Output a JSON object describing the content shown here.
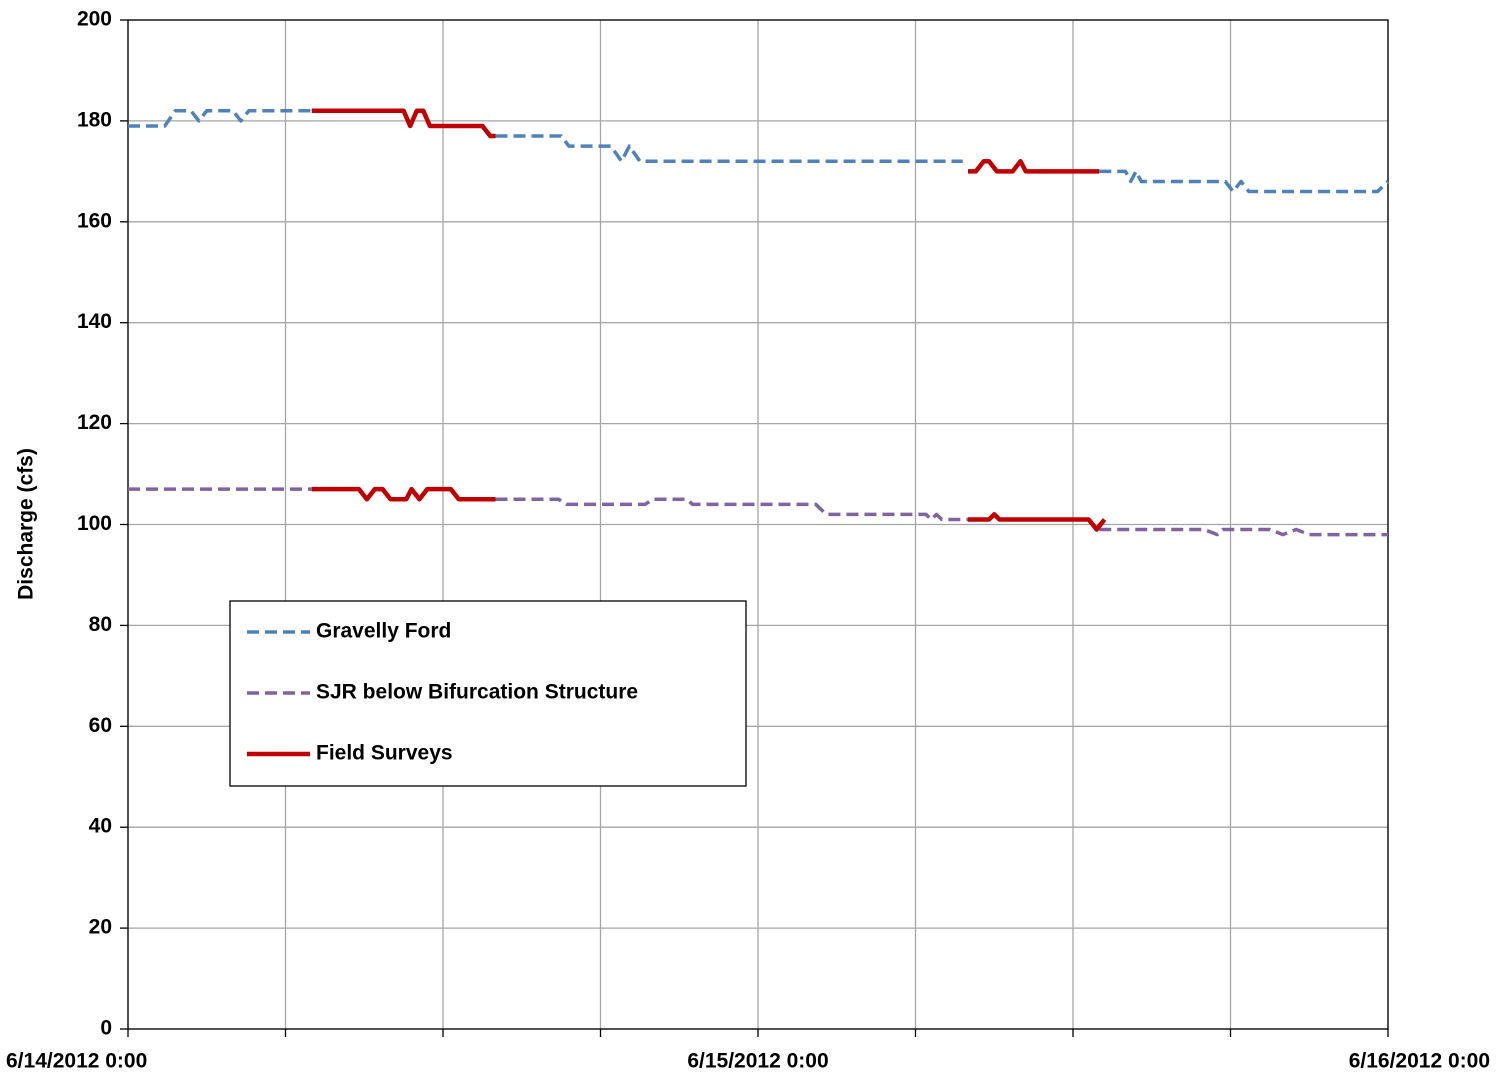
{
  "chart_data": {
    "type": "line",
    "y_label": "Discharge (cfs)",
    "xlim": [
      "6/14/2012 0:00",
      "6/16/2012 0:00"
    ],
    "xticks": [
      "6/14/2012 0:00",
      {
        "value": "6/14/2012 6:00",
        "label": null
      },
      {
        "value": "6/14/2012 12:00",
        "label": null
      },
      {
        "value": "6/14/2012 18:00",
        "label": null
      },
      "6/15/2012 0:00",
      {
        "value": "6/15/2012 6:00",
        "label": null
      },
      {
        "value": "6/15/2012 12:00",
        "label": null
      },
      {
        "value": "6/15/2012 18:00",
        "label": null
      },
      "6/16/2012 0:00"
    ],
    "ylim": [
      0,
      200
    ],
    "yticks": [
      0,
      20,
      40,
      60,
      80,
      100,
      120,
      140,
      160,
      180,
      200
    ],
    "grid": true,
    "legend_position": "inside-left",
    "series": [
      {
        "name": "Gravelly Ford",
        "color": "#4f81bd",
        "dashed": true,
        "x": [
          "6/14/2012 0:00",
          "6/14/2012 1:24",
          "6/14/2012 1:48",
          "6/14/2012 2:24",
          "6/14/2012 2:42",
          "6/14/2012 3:00",
          "6/14/2012 4:00",
          "6/14/2012 4:18",
          "6/14/2012 4:36",
          "6/14/2012 7:00",
          null,
          "6/14/2012 14:00",
          "6/14/2012 16:30",
          "6/14/2012 16:48",
          "6/14/2012 18:24",
          "6/14/2012 18:48",
          "6/14/2012 19:06",
          "6/14/2012 19:30",
          "6/15/2012 7:48",
          null,
          "6/15/2012 13:00",
          "6/15/2012 14:00",
          "6/15/2012 14:12",
          "6/15/2012 14:24",
          "6/15/2012 14:36",
          "6/15/2012 17:48",
          "6/15/2012 18:06",
          "6/15/2012 18:24",
          "6/15/2012 18:42",
          "6/15/2012 23:36",
          "6/16/2012 0:00"
        ],
        "values": [
          179,
          179,
          182,
          182,
          180,
          182,
          182,
          180,
          182,
          182,
          null,
          177,
          177,
          175,
          175,
          172,
          175,
          172,
          172,
          null,
          170,
          170,
          168,
          170,
          168,
          168,
          166,
          168,
          166,
          166,
          168
        ]
      },
      {
        "name": "SJR below Bifurcation Structure",
        "color": "#8064a2",
        "dashed": true,
        "x": [
          "6/14/2012 0:00",
          "6/14/2012 7:00",
          null,
          "6/14/2012 14:00",
          "6/14/2012 16:24",
          "6/14/2012 16:42",
          "6/14/2012 19:42",
          "6/14/2012 20:00",
          "6/14/2012 21:18",
          "6/14/2012 21:30",
          "6/15/2012 2:12",
          "6/15/2012 2:36",
          "6/15/2012 6:24",
          "6/15/2012 6:36",
          "6/15/2012 6:48",
          "6/15/2012 7:00",
          "6/15/2012 8:00",
          null,
          "6/15/2012 13:00",
          "6/15/2012 17:00",
          "6/15/2012 17:30",
          "6/15/2012 17:42",
          "6/15/2012 19:30",
          "6/15/2012 20:00",
          "6/15/2012 20:30",
          "6/15/2012 21:00",
          "6/16/2012 0:00"
        ],
        "values": [
          107,
          107,
          null,
          105,
          105,
          104,
          104,
          105,
          105,
          104,
          104,
          102,
          102,
          101,
          102,
          101,
          101,
          null,
          99,
          99,
          98,
          99,
          99,
          98,
          99,
          98,
          98
        ]
      },
      {
        "name": "Field Surveys",
        "color": "#c00000",
        "dashed": false,
        "x": [
          "6/14/2012 7:00",
          "6/14/2012 10:30",
          "6/14/2012 10:45",
          "6/14/2012 11:00",
          "6/14/2012 11:15",
          "6/14/2012 11:30",
          "6/14/2012 13:30",
          "6/14/2012 13:48",
          "6/14/2012 14:00",
          null,
          "6/15/2012 8:00",
          "6/15/2012 8:18",
          "6/15/2012 8:36",
          "6/15/2012 8:48",
          "6/15/2012 9:06",
          "6/15/2012 9:42",
          "6/15/2012 10:00",
          "6/15/2012 10:12",
          "6/15/2012 13:00",
          null,
          "6/14/2012 7:00",
          "6/14/2012 8:48",
          "6/14/2012 9:06",
          "6/14/2012 9:24",
          "6/14/2012 9:42",
          "6/14/2012 10:00",
          "6/14/2012 10:36",
          "6/14/2012 10:48",
          "6/14/2012 11:06",
          "6/14/2012 11:24",
          "6/14/2012 12:18",
          "6/14/2012 12:36",
          "6/14/2012 14:00",
          null,
          "6/15/2012 8:00",
          "6/15/2012 8:48",
          "6/15/2012 9:00",
          "6/15/2012 9:12",
          "6/15/2012 12:36",
          "6/15/2012 12:54",
          "6/15/2012 13:12"
        ],
        "values": [
          182,
          182,
          179,
          182,
          182,
          179,
          179,
          177,
          177,
          null,
          170,
          170,
          172,
          172,
          170,
          170,
          172,
          170,
          170,
          null,
          107,
          107,
          105,
          107,
          107,
          105,
          105,
          107,
          105,
          107,
          107,
          105,
          105,
          null,
          101,
          101,
          102,
          101,
          101,
          99,
          101
        ]
      }
    ]
  }
}
